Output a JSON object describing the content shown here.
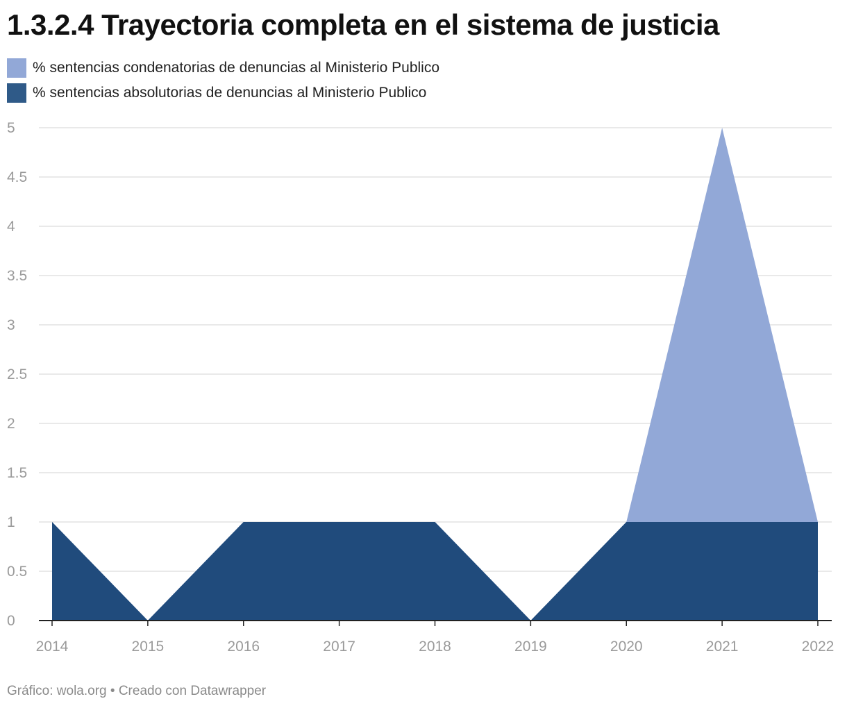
{
  "title": "1.3.2.4 Trayectoria completa en el sistema de justicia",
  "footer": "Gráfico: wola.org • Creado con Datawrapper",
  "chart_data": {
    "type": "area",
    "stacked": false,
    "x": [
      "2014",
      "2015",
      "2016",
      "2017",
      "2018",
      "2019",
      "2020",
      "2021",
      "2022"
    ],
    "series": [
      {
        "name": "% sentencias condenatorias de denuncias al Ministerio Publico",
        "values": [
          1,
          0,
          1,
          1,
          1,
          0,
          1,
          5,
          1
        ],
        "color": "#92a8d7"
      },
      {
        "name": "% sentencias absolutorias de denuncias al Ministerio Publico",
        "values": [
          1,
          0,
          1,
          1,
          1,
          0,
          1,
          1,
          1
        ],
        "color": "#204b7c"
      }
    ],
    "yticks": [
      "0",
      "0.5",
      "1",
      "1.5",
      "2",
      "2.5",
      "3",
      "3.5",
      "4",
      "4.5",
      "5"
    ],
    "ylim": [
      0,
      5
    ],
    "grid": true,
    "legend": "top-left"
  }
}
